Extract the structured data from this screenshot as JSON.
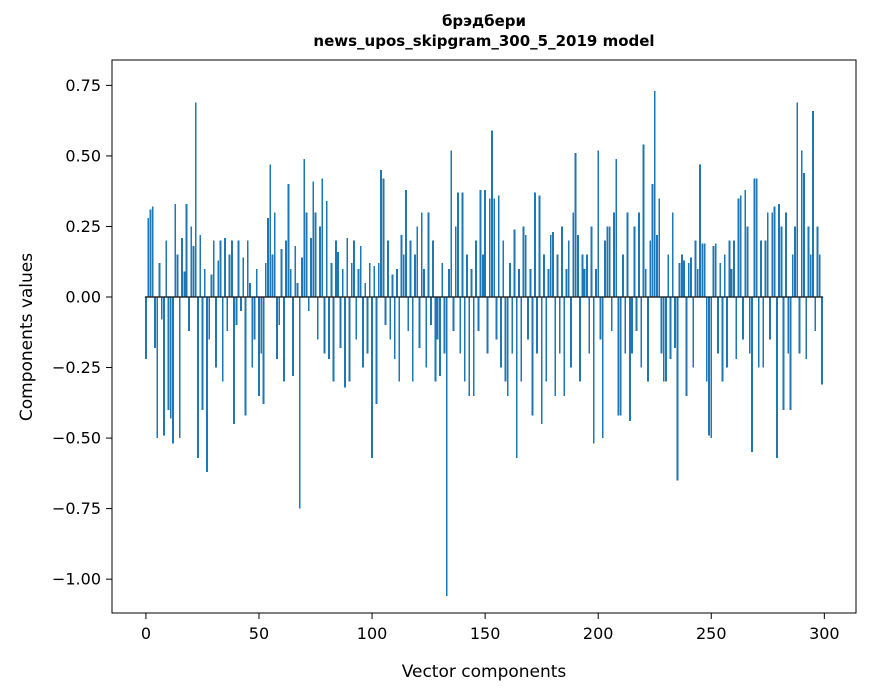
{
  "figure": {
    "title_line1": "брэдбери",
    "title_line2": "news_upos_skipgram_300_5_2019 model"
  },
  "chart_data": {
    "type": "bar",
    "title": "брэдбери\nnews_upos_skipgram_300_5_2019 model",
    "xlabel": "Vector components",
    "ylabel": "Components values",
    "bar_color": "#1f77b4",
    "zero_line_color": "#1a1a1a",
    "grid": false,
    "legend": "none",
    "xlim": [
      -15,
      314
    ],
    "ylim": [
      -1.12,
      0.84
    ],
    "x_ticks": [
      0,
      50,
      100,
      150,
      200,
      250,
      300
    ],
    "x_tick_labels": [
      "0",
      "50",
      "100",
      "150",
      "200",
      "250",
      "300"
    ],
    "y_ticks": [
      -1.0,
      -0.75,
      -0.5,
      -0.25,
      0.0,
      0.25,
      0.5,
      0.75
    ],
    "y_tick_labels": [
      "−1.00",
      "−0.75",
      "−0.50",
      "−0.25",
      "0.00",
      "0.25",
      "0.50",
      "0.75"
    ],
    "values": [
      -0.22,
      0.28,
      0.31,
      0.32,
      -0.18,
      -0.5,
      0.12,
      -0.08,
      -0.49,
      0.2,
      -0.4,
      -0.43,
      -0.52,
      0.33,
      0.15,
      -0.5,
      0.21,
      0.09,
      0.33,
      -0.12,
      0.25,
      0.18,
      0.69,
      -0.57,
      0.22,
      -0.4,
      0.1,
      -0.62,
      -0.15,
      0.08,
      0.2,
      -0.25,
      0.13,
      0.2,
      -0.3,
      0.21,
      -0.12,
      0.15,
      0.2,
      -0.45,
      -0.1,
      0.2,
      -0.05,
      0.14,
      -0.42,
      0.2,
      0.05,
      -0.25,
      -0.15,
      0.1,
      -0.35,
      -0.2,
      -0.38,
      0.12,
      0.28,
      0.47,
      0.15,
      0.3,
      -0.22,
      -0.1,
      0.17,
      -0.3,
      0.2,
      0.4,
      0.1,
      -0.28,
      0.18,
      0.05,
      -0.75,
      0.14,
      0.49,
      0.3,
      -0.05,
      0.21,
      0.41,
      0.3,
      -0.15,
      0.25,
      0.42,
      -0.2,
      0.34,
      -0.22,
      0.12,
      -0.3,
      0.2,
      0.16,
      -0.18,
      0.1,
      -0.32,
      0.21,
      -0.3,
      0.12,
      0.2,
      -0.15,
      0.1,
      0.18,
      -0.25,
      0.05,
      -0.2,
      0.12,
      -0.57,
      0.11,
      -0.38,
      0.12,
      0.45,
      0.42,
      -0.1,
      0.2,
      -0.15,
      0.08,
      -0.22,
      0.1,
      -0.3,
      0.22,
      0.15,
      0.38,
      -0.12,
      0.2,
      -0.3,
      0.15,
      0.25,
      -0.18,
      0.3,
      0.1,
      -0.25,
      0.3,
      -0.1,
      0.2,
      -0.3,
      -0.15,
      -0.28,
      0.12,
      -0.2,
      -1.06,
      0.1,
      0.52,
      -0.12,
      0.25,
      0.37,
      -0.2,
      0.37,
      -0.3,
      0.15,
      -0.35,
      0.1,
      -0.35,
      0.2,
      -0.12,
      0.38,
      0.15,
      0.38,
      -0.2,
      0.35,
      0.59,
      0.35,
      -0.15,
      0.36,
      -0.25,
      0.2,
      -0.3,
      -0.35,
      0.12,
      -0.2,
      0.24,
      -0.57,
      0.1,
      -0.3,
      0.25,
      0.22,
      -0.15,
      0.1,
      -0.42,
      0.37,
      -0.2,
      0.36,
      -0.45,
      0.15,
      -0.3,
      0.1,
      0.22,
      0.23,
      -0.35,
      0.15,
      -0.2,
      0.25,
      -0.35,
      0.1,
      0.2,
      -0.25,
      0.3,
      0.51,
      0.22,
      -0.3,
      0.15,
      0.1,
      0.15,
      -0.2,
      0.25,
      -0.52,
      0.1,
      0.52,
      -0.15,
      -0.5,
      0.2,
      0.25,
      0.25,
      -0.12,
      0.3,
      0.49,
      -0.42,
      -0.42,
      0.15,
      -0.2,
      0.3,
      -0.44,
      -0.2,
      0.25,
      -0.12,
      0.3,
      -0.25,
      0.54,
      0.1,
      -0.3,
      0.2,
      0.4,
      0.73,
      0.22,
      0.35,
      -0.2,
      -0.3,
      -0.3,
      0.15,
      -0.22,
      0.3,
      -0.18,
      -0.65,
      0.12,
      0.15,
      0.13,
      -0.35,
      0.12,
      0.14,
      -0.25,
      0.2,
      0.1,
      0.47,
      0.19,
      0.19,
      -0.3,
      -0.49,
      -0.5,
      0.18,
      0.19,
      -0.2,
      0.12,
      -0.3,
      0.15,
      -0.25,
      0.2,
      0.1,
      0.2,
      -0.22,
      0.35,
      0.36,
      -0.15,
      0.38,
      0.25,
      -0.2,
      -0.55,
      0.42,
      0.42,
      -0.25,
      0.2,
      -0.25,
      0.2,
      0.3,
      -0.15,
      0.3,
      0.32,
      -0.57,
      0.33,
      0.25,
      -0.4,
      0.3,
      -0.2,
      -0.4,
      0.15,
      0.25,
      0.69,
      -0.2,
      0.52,
      0.44,
      -0.22,
      0.25,
      0.15,
      0.66,
      -0.12,
      0.25,
      0.15,
      -0.31
    ]
  }
}
